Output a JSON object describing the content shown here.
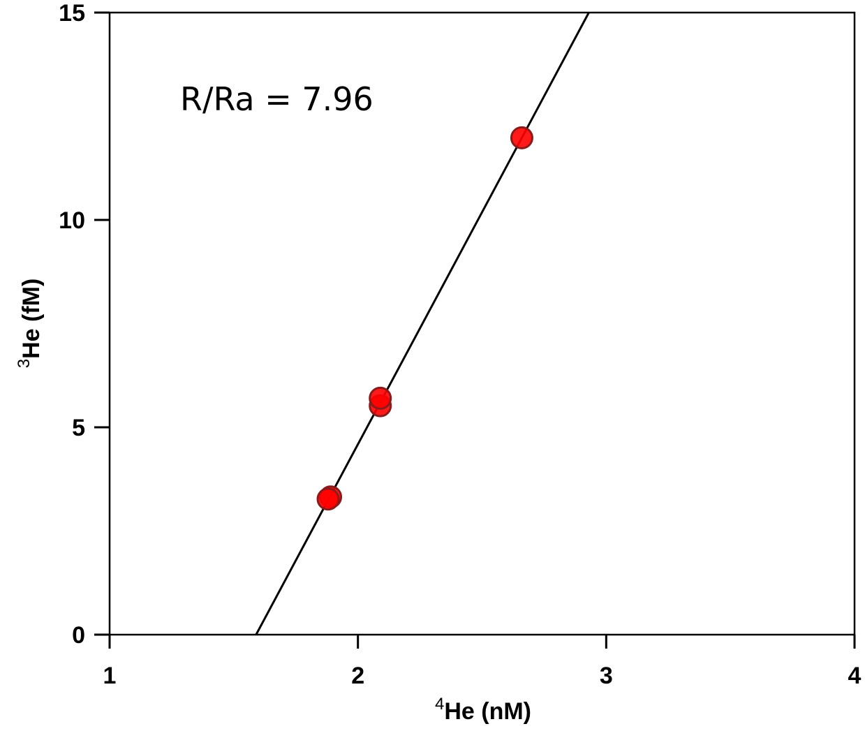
{
  "chart_data": {
    "type": "scatter",
    "title": "",
    "xlabel": {
      "sup": "4",
      "text": "He (nM)"
    },
    "ylabel": {
      "sup": "3",
      "text": "He (fM)"
    },
    "xlim": [
      1,
      4
    ],
    "ylim": [
      0,
      15
    ],
    "x_ticks": [
      1,
      2,
      3,
      4
    ],
    "y_ticks": [
      0,
      5,
      10,
      15
    ],
    "x_tick_labels": [
      "1",
      "2",
      "3",
      "4"
    ],
    "y_tick_labels": [
      "0",
      "5",
      "10",
      "15"
    ],
    "grid": false,
    "annotation": "R/Ra = 7.96",
    "series": [
      {
        "points": [
          {
            "x": 1.89,
            "y": 3.32
          },
          {
            "x": 1.88,
            "y": 3.27
          },
          {
            "x": 2.09,
            "y": 5.52
          },
          {
            "x": 2.09,
            "y": 5.7
          },
          {
            "x": 2.66,
            "y": 11.98
          }
        ],
        "color": "#ff0000",
        "edge_color": "#8b1a1a"
      }
    ],
    "fit_line": {
      "x": [
        1.59,
        2.93
      ],
      "y": [
        0,
        15
      ],
      "color": "#000000"
    }
  }
}
